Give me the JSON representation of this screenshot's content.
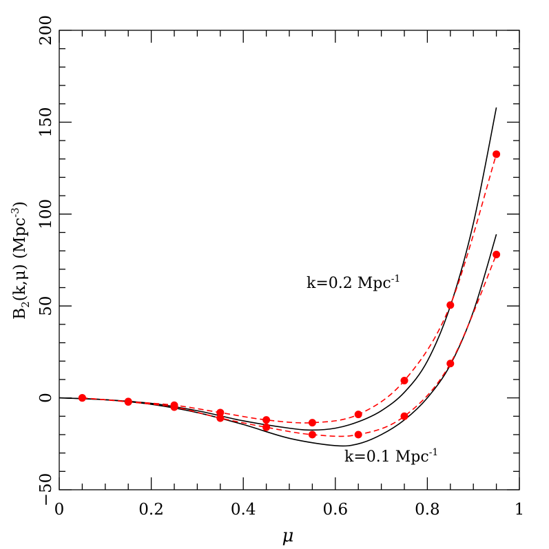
{
  "chart_data": {
    "type": "line",
    "xlabel": "μ",
    "ylabel": "B2(k,μ)  (Mpc-3)",
    "ylabel_parts": {
      "main": "B",
      "sub": "2",
      "mid": "(k,μ)  (Mpc",
      "sup": "-3",
      "end": ")"
    },
    "xlim": [
      0,
      1
    ],
    "ylim": [
      -50,
      200
    ],
    "xticks": [
      0,
      0.2,
      0.4,
      0.6,
      0.8,
      1
    ],
    "xtick_labels": [
      "0",
      "0.2",
      "0.4",
      "0.6",
      "0.8",
      "1"
    ],
    "yticks": [
      -50,
      0,
      50,
      100,
      150,
      200
    ],
    "ytick_labels": [
      "−50",
      "0",
      "50",
      "100",
      "150",
      "200"
    ],
    "grid": false,
    "annotations": [
      {
        "text": "k=0.2 Mpc",
        "sup": "-1",
        "x": 0.54,
        "y": 62
      },
      {
        "text": "k=0.1 Mpc",
        "sup": "-1",
        "x": 0.62,
        "y": -32
      }
    ],
    "series": [
      {
        "style": "solid",
        "color": "#000000",
        "group": "k=0.2",
        "x": [
          0,
          0.1,
          0.2,
          0.3,
          0.4,
          0.5,
          0.55,
          0.6,
          0.65,
          0.7,
          0.75,
          0.8,
          0.85,
          0.9,
          0.95
        ],
        "y": [
          0,
          -1,
          -3,
          -7,
          -12.5,
          -16.5,
          -17.5,
          -16.5,
          -13,
          -7,
          3,
          20,
          50,
          95,
          158
        ]
      },
      {
        "style": "solid",
        "color": "#000000",
        "group": "k=0.1",
        "x": [
          0,
          0.1,
          0.2,
          0.3,
          0.4,
          0.5,
          0.6,
          0.65,
          0.7,
          0.75,
          0.8,
          0.85,
          0.9,
          0.95
        ],
        "y": [
          0,
          -1,
          -3.5,
          -8,
          -14.5,
          -22,
          -26,
          -25,
          -20,
          -12,
          0,
          18,
          47,
          89
        ]
      },
      {
        "style": "dashed-markers",
        "color": "#ff0000",
        "group": "k=0.2",
        "x": [
          0.05,
          0.15,
          0.25,
          0.35,
          0.45,
          0.55,
          0.65,
          0.75,
          0.85,
          0.95
        ],
        "y": [
          0,
          -2,
          -4,
          -8,
          -12,
          -13.5,
          -9,
          9.4,
          50.5,
          132.6
        ]
      },
      {
        "style": "dashed-markers",
        "color": "#ff0000",
        "group": "k=0.1",
        "x": [
          0.05,
          0.15,
          0.25,
          0.35,
          0.45,
          0.55,
          0.65,
          0.75,
          0.85,
          0.95
        ],
        "y": [
          0,
          -2.2,
          -5,
          -11,
          -16,
          -20,
          -20,
          -10,
          18.7,
          78
        ]
      }
    ]
  }
}
